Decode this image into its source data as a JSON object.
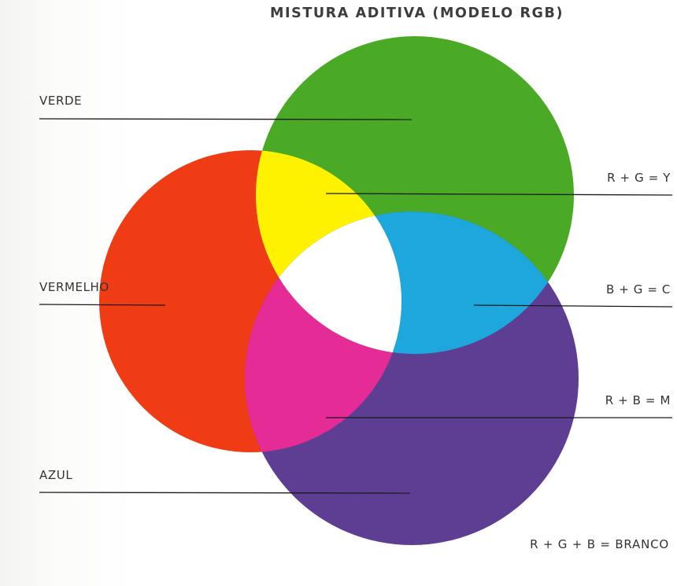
{
  "title": "MISTURA ADITIVA (MODELO RGB)",
  "labels": {
    "green": "VERDE",
    "red": "VERMELHO",
    "blue": "AZUL",
    "yellow_mix": "R + G = Y",
    "cyan_mix": "B + G = C",
    "magenta_mix": "R + B = M",
    "white_mix": "R + G + B = BRANCO"
  },
  "colors": {
    "red": "#f03c14",
    "green": "#4aaa26",
    "blue": "#5d3e93",
    "yellow": "#fff200",
    "cyan": "#1ea7dd",
    "magenta": "#e52b95",
    "white": "#ffffff",
    "line": "#1a1a1a"
  }
}
